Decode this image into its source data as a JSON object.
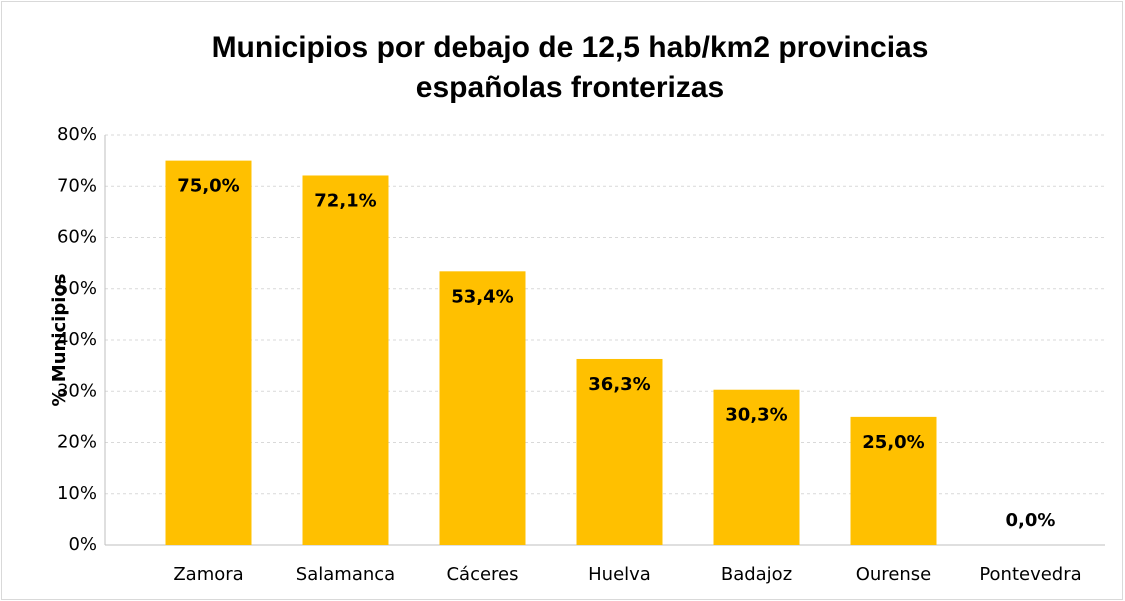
{
  "chart_data": {
    "type": "bar",
    "title": "Municipios por debajo de 12,5 hab/km2 provincias españolas fronterizas",
    "y_axis_label": "% Municipios",
    "categories": [
      "Zamora",
      "Salamanca",
      "Cáceres",
      "Huelva",
      "Badajoz",
      "Ourense",
      "Pontevedra"
    ],
    "values": [
      75.0,
      72.1,
      53.4,
      36.3,
      30.3,
      25.0,
      0.0
    ],
    "value_labels": [
      "75,0%",
      "72,1%",
      "53,4%",
      "36,3%",
      "30,3%",
      "25,0%",
      "0,0%"
    ],
    "color": "#ffc000",
    "ylim": [
      0,
      80
    ],
    "yticks": [
      {
        "value": 0,
        "label": "0%"
      },
      {
        "value": 10,
        "label": "10%"
      },
      {
        "value": 20,
        "label": "20%"
      },
      {
        "value": 30,
        "label": "30%"
      },
      {
        "value": 40,
        "label": "40%"
      },
      {
        "value": 50,
        "label": "50%"
      },
      {
        "value": 60,
        "label": "60%"
      },
      {
        "value": 70,
        "label": "70%"
      },
      {
        "value": 80,
        "label": "80%"
      }
    ],
    "grid": true
  }
}
